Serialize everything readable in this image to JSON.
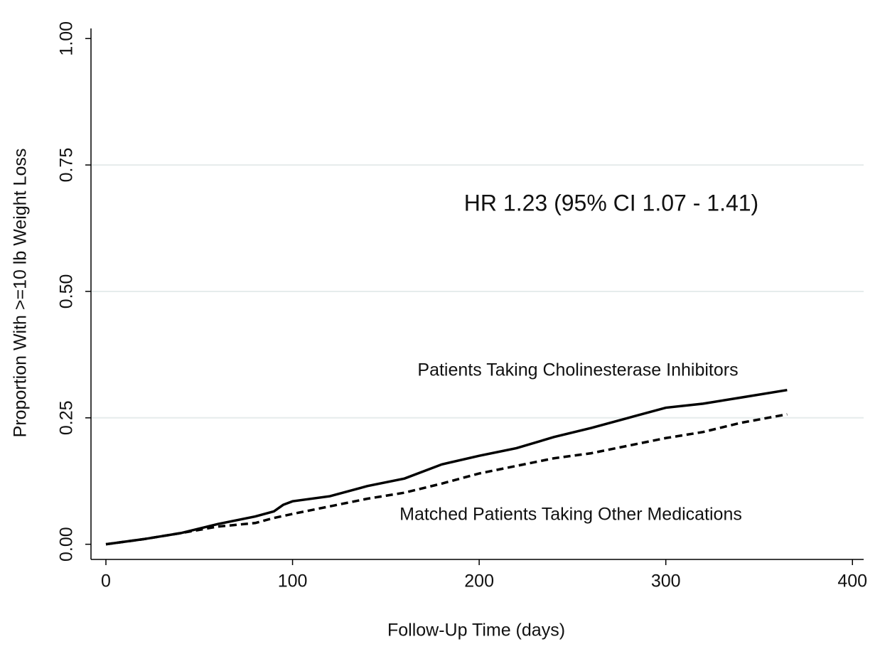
{
  "chart_data": {
    "type": "line",
    "xlabel": "Follow-Up Time (days)",
    "ylabel": "Proportion With >=10 lb Weight Loss",
    "annotation": "HR 1.23 (95% CI 1.07 - 1.41)",
    "x": [
      0,
      20,
      40,
      60,
      80,
      90,
      95,
      100,
      120,
      140,
      160,
      180,
      200,
      220,
      240,
      260,
      280,
      300,
      320,
      340,
      365
    ],
    "series": [
      {
        "name": "Patients Taking Cholinesterase Inhibitors",
        "color": "#000000",
        "line_style": "solid",
        "values": [
          0,
          0.01,
          0.022,
          0.04,
          0.055,
          0.065,
          0.078,
          0.085,
          0.095,
          0.115,
          0.13,
          0.158,
          0.175,
          0.19,
          0.212,
          0.23,
          0.25,
          0.27,
          0.278,
          0.29,
          0.305
        ]
      },
      {
        "name": "Matched Patients Taking Other Medications",
        "color": "#000000",
        "line_style": "dashed",
        "values": [
          0,
          0.01,
          0.022,
          0.035,
          0.042,
          0.052,
          0.056,
          0.06,
          0.075,
          0.09,
          0.102,
          0.12,
          0.14,
          0.155,
          0.17,
          0.18,
          0.195,
          0.21,
          0.222,
          0.24,
          0.257
        ]
      }
    ],
    "xlim": [
      -8,
      406
    ],
    "ylim": [
      -0.03,
      1.02
    ],
    "xticks": [
      0,
      100,
      200,
      300,
      400
    ],
    "yticks": [
      {
        "value": 0,
        "label": "0.00"
      },
      {
        "value": 0.25,
        "label": "0.25"
      },
      {
        "value": 0.5,
        "label": "0.50"
      },
      {
        "value": 0.75,
        "label": "0.75"
      },
      {
        "value": 1,
        "label": "1.00"
      }
    ],
    "grid": true
  }
}
